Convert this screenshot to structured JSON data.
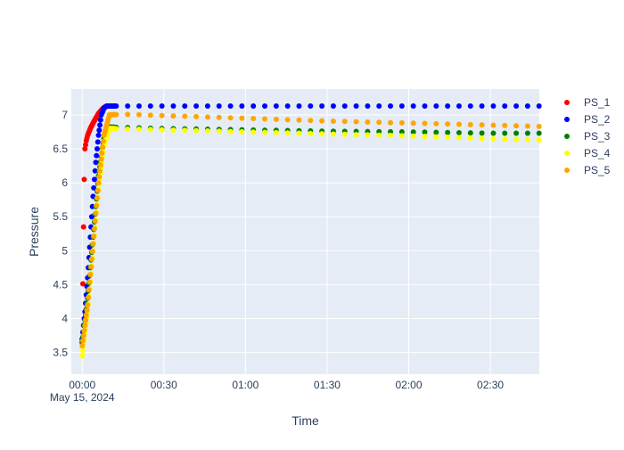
{
  "chart_data": {
    "type": "scatter",
    "title": "",
    "xlabel": "Time",
    "ylabel": "Pressure",
    "x_date_label": "May 15, 2024",
    "x_ticks": [
      "00:00",
      "00:30",
      "01:00",
      "01:30",
      "02:00",
      "02:30"
    ],
    "y_ticks": [
      "3.5",
      "4",
      "4.5",
      "5",
      "5.5",
      "6",
      "6.5",
      "7"
    ],
    "xlim": [
      "2024-05-15 23:56 (prev day)",
      "2024-05-15 02:48"
    ],
    "ylim": [
      3.18,
      7.38
    ],
    "grid": true,
    "legend_position": "top-right",
    "plot_bgcolor": "#e5ecf6",
    "series": [
      {
        "name": "PS_1",
        "color": "#ff0000",
        "x": [
          "00:00",
          "00:00:20",
          "00:00:40",
          "00:01",
          "00:01:30",
          "00:02",
          "00:03",
          "00:04",
          "00:05",
          "00:06",
          "00:07",
          "00:08",
          "00:09"
        ],
        "y": [
          3.65,
          4.8,
          5.9,
          6.5,
          6.62,
          6.7,
          6.8,
          6.88,
          6.95,
          7.02,
          7.07,
          7.11,
          7.13
        ]
      },
      {
        "name": "PS_2",
        "color": "#0000ff",
        "x": [
          "00:00",
          "00:01",
          "00:02",
          "00:03",
          "00:04",
          "00:05",
          "00:06",
          "00:07",
          "00:08",
          "00:09",
          "00:10",
          "00:15",
          "00:30",
          "01:00",
          "01:30",
          "02:00",
          "02:30",
          "02:48"
        ],
        "y": [
          3.7,
          4.1,
          4.6,
          5.2,
          5.8,
          6.3,
          6.7,
          7.0,
          7.1,
          7.13,
          7.13,
          7.13,
          7.13,
          7.13,
          7.13,
          7.13,
          7.13,
          7.13
        ]
      },
      {
        "name": "PS_3",
        "color": "#008000",
        "x": [
          "00:00",
          "00:02",
          "00:04",
          "00:06",
          "00:08",
          "00:10",
          "00:30",
          "01:00",
          "01:30",
          "02:00",
          "02:30",
          "02:48"
        ],
        "y": [
          3.65,
          4.3,
          5.2,
          6.1,
          6.65,
          6.82,
          6.8,
          6.78,
          6.76,
          6.75,
          6.73,
          6.73
        ]
      },
      {
        "name": "PS_4",
        "color": "#ffff00",
        "x": [
          "00:00",
          "00:02",
          "00:04",
          "00:06",
          "00:08",
          "00:10",
          "00:30",
          "01:00",
          "01:30",
          "02:00",
          "02:30",
          "02:48"
        ],
        "y": [
          3.45,
          4.1,
          5.0,
          5.9,
          6.55,
          6.8,
          6.78,
          6.75,
          6.72,
          6.69,
          6.65,
          6.63
        ]
      },
      {
        "name": "PS_5",
        "color": "#ffa500",
        "x": [
          "00:00",
          "00:02",
          "00:04",
          "00:06",
          "00:08",
          "00:10",
          "00:15",
          "00:30",
          "01:00",
          "01:30",
          "02:00",
          "02:30",
          "02:48"
        ],
        "y": [
          3.6,
          4.2,
          5.1,
          6.0,
          6.7,
          7.0,
          7.01,
          6.99,
          6.95,
          6.91,
          6.88,
          6.85,
          6.83
        ]
      }
    ]
  }
}
